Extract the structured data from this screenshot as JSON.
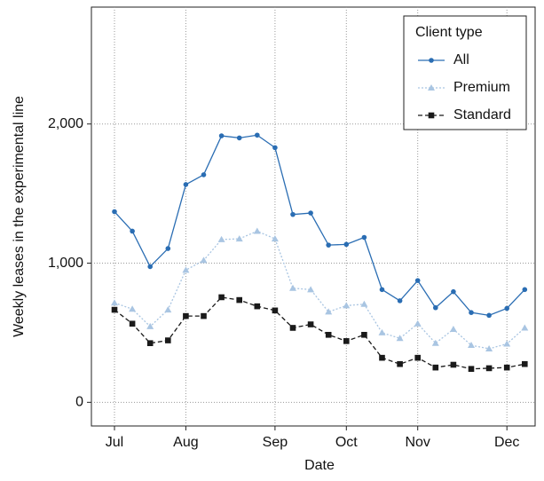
{
  "chart_data": {
    "type": "line",
    "x_label": "Date",
    "y_label": "Weekly leases in the experimental line",
    "categories": [
      "Jul",
      null,
      null,
      null,
      "Aug",
      null,
      null,
      null,
      null,
      "Sep",
      null,
      null,
      null,
      "Oct",
      null,
      null,
      null,
      "Nov",
      null,
      null,
      null,
      null,
      "Dec",
      null
    ],
    "ylim": [
      -170,
      2840
    ],
    "yticks": [
      0,
      {
        "value": 1000,
        "label": "1,000"
      },
      {
        "value": 2000,
        "label": "2,000"
      }
    ],
    "grid": true,
    "legend_title": "Client type",
    "legend": "top-right",
    "series": [
      {
        "name": "All",
        "color": "#2a6db3",
        "marker": "circle",
        "dash": "solid",
        "values": [
          1370,
          1230,
          975,
          1105,
          1565,
          1635,
          1915,
          1900,
          1920,
          1830,
          1350,
          1360,
          1130,
          1135,
          1185,
          810,
          730,
          875,
          680,
          795,
          645,
          625,
          675,
          810
        ]
      },
      {
        "name": "Premium",
        "color": "#a9c5e2",
        "marker": "triangle",
        "dash": "dotted",
        "values": [
          715,
          670,
          545,
          665,
          950,
          1020,
          1170,
          1175,
          1230,
          1175,
          820,
          810,
          650,
          695,
          705,
          500,
          460,
          565,
          425,
          525,
          410,
          385,
          420,
          535
        ]
      },
      {
        "name": "Standard",
        "color": "#1a1a1a",
        "marker": "square",
        "dash": "dashed",
        "values": [
          665,
          565,
          425,
          445,
          620,
          620,
          755,
          735,
          690,
          660,
          535,
          560,
          485,
          440,
          485,
          320,
          275,
          320,
          250,
          270,
          240,
          245,
          250,
          275
        ]
      }
    ]
  }
}
